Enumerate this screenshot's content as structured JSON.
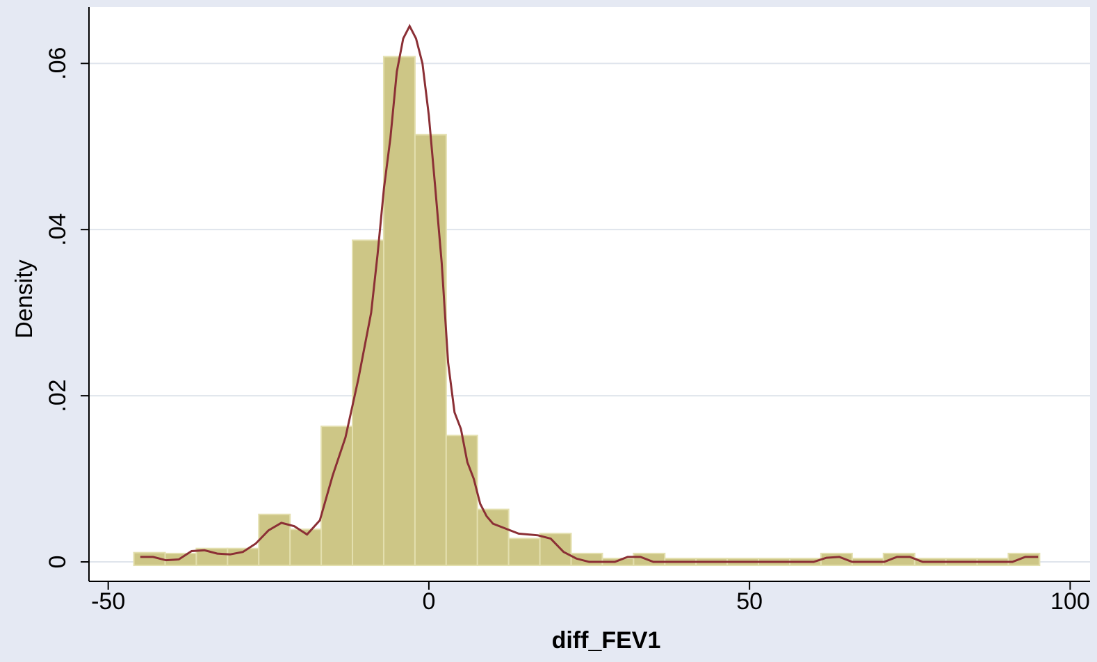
{
  "chart_data": {
    "type": "histogram",
    "x_label": "diff_FEV1",
    "y_label": "Density",
    "bins": [
      -46,
      -41.13,
      -36.26,
      -31.39,
      -26.52,
      -21.65,
      -16.78,
      -11.91,
      -7.04,
      -2.17,
      2.7,
      7.57,
      12.44,
      17.31,
      22.18,
      27.05,
      31.92,
      36.79,
      41.66,
      46.53,
      51.4,
      56.27,
      61.14,
      66.01,
      70.88,
      75.75,
      80.62,
      85.49,
      90.36,
      95.23
    ],
    "values": [
      0.0007,
      0.0006,
      0.0012,
      0.0012,
      0.0053,
      0.0035,
      0.0159,
      0.0383,
      0.0604,
      0.051,
      0.0148,
      0.0059,
      0.0024,
      0.003,
      0.0006,
      0,
      0.0006,
      0,
      0,
      0,
      0,
      0,
      0.0006,
      0,
      0.0006,
      0,
      0,
      0,
      0.0006
    ],
    "color": "#cdc686",
    "edge_color": "#e3dfae",
    "density_x": [
      -45,
      -43,
      -41,
      -39,
      -37,
      -35,
      -33,
      -31,
      -29,
      -27,
      -25,
      -23,
      -21,
      -19,
      -17,
      -15,
      -13,
      -11,
      -9,
      -8,
      -7,
      -6,
      -5,
      -4,
      -3,
      -2,
      -1,
      0,
      1,
      2,
      3,
      4,
      5,
      6,
      7,
      8,
      9,
      10,
      12,
      14,
      17,
      19,
      21,
      23,
      25,
      29,
      31,
      33,
      35,
      60,
      62,
      64,
      66,
      71,
      73,
      75,
      77,
      91,
      93,
      95
    ],
    "density_y": [
      0.0006,
      0.0006,
      0.0002,
      0.0003,
      0.0013,
      0.0014,
      0.001,
      0.0009,
      0.0012,
      0.0022,
      0.0038,
      0.0047,
      0.0043,
      0.0033,
      0.005,
      0.0104,
      0.015,
      0.022,
      0.03,
      0.037,
      0.045,
      0.051,
      0.059,
      0.063,
      0.0645,
      0.063,
      0.06,
      0.0537,
      0.045,
      0.036,
      0.024,
      0.018,
      0.016,
      0.012,
      0.01,
      0.007,
      0.0055,
      0.0046,
      0.004,
      0.0034,
      0.0032,
      0.0028,
      0.0012,
      0.0004,
      0,
      0,
      0.0006,
      0.0006,
      0,
      0,
      0.0005,
      0.0006,
      0,
      0,
      0.0006,
      0.0006,
      0,
      0,
      0.0006,
      0.0006
    ],
    "density_color": "#8b2f35",
    "xlim": [
      -53,
      103.1
    ],
    "ylim": [
      -0.00234,
      0.0668
    ],
    "xticks": [
      -50,
      0,
      50,
      100
    ],
    "yticks": [
      {
        "value": 0,
        "label": "0"
      },
      {
        "value": 0.02,
        "label": ".02"
      },
      {
        "value": 0.04,
        "label": ".04"
      },
      {
        "value": 0.06,
        "label": ".06"
      }
    ],
    "grid": true
  }
}
